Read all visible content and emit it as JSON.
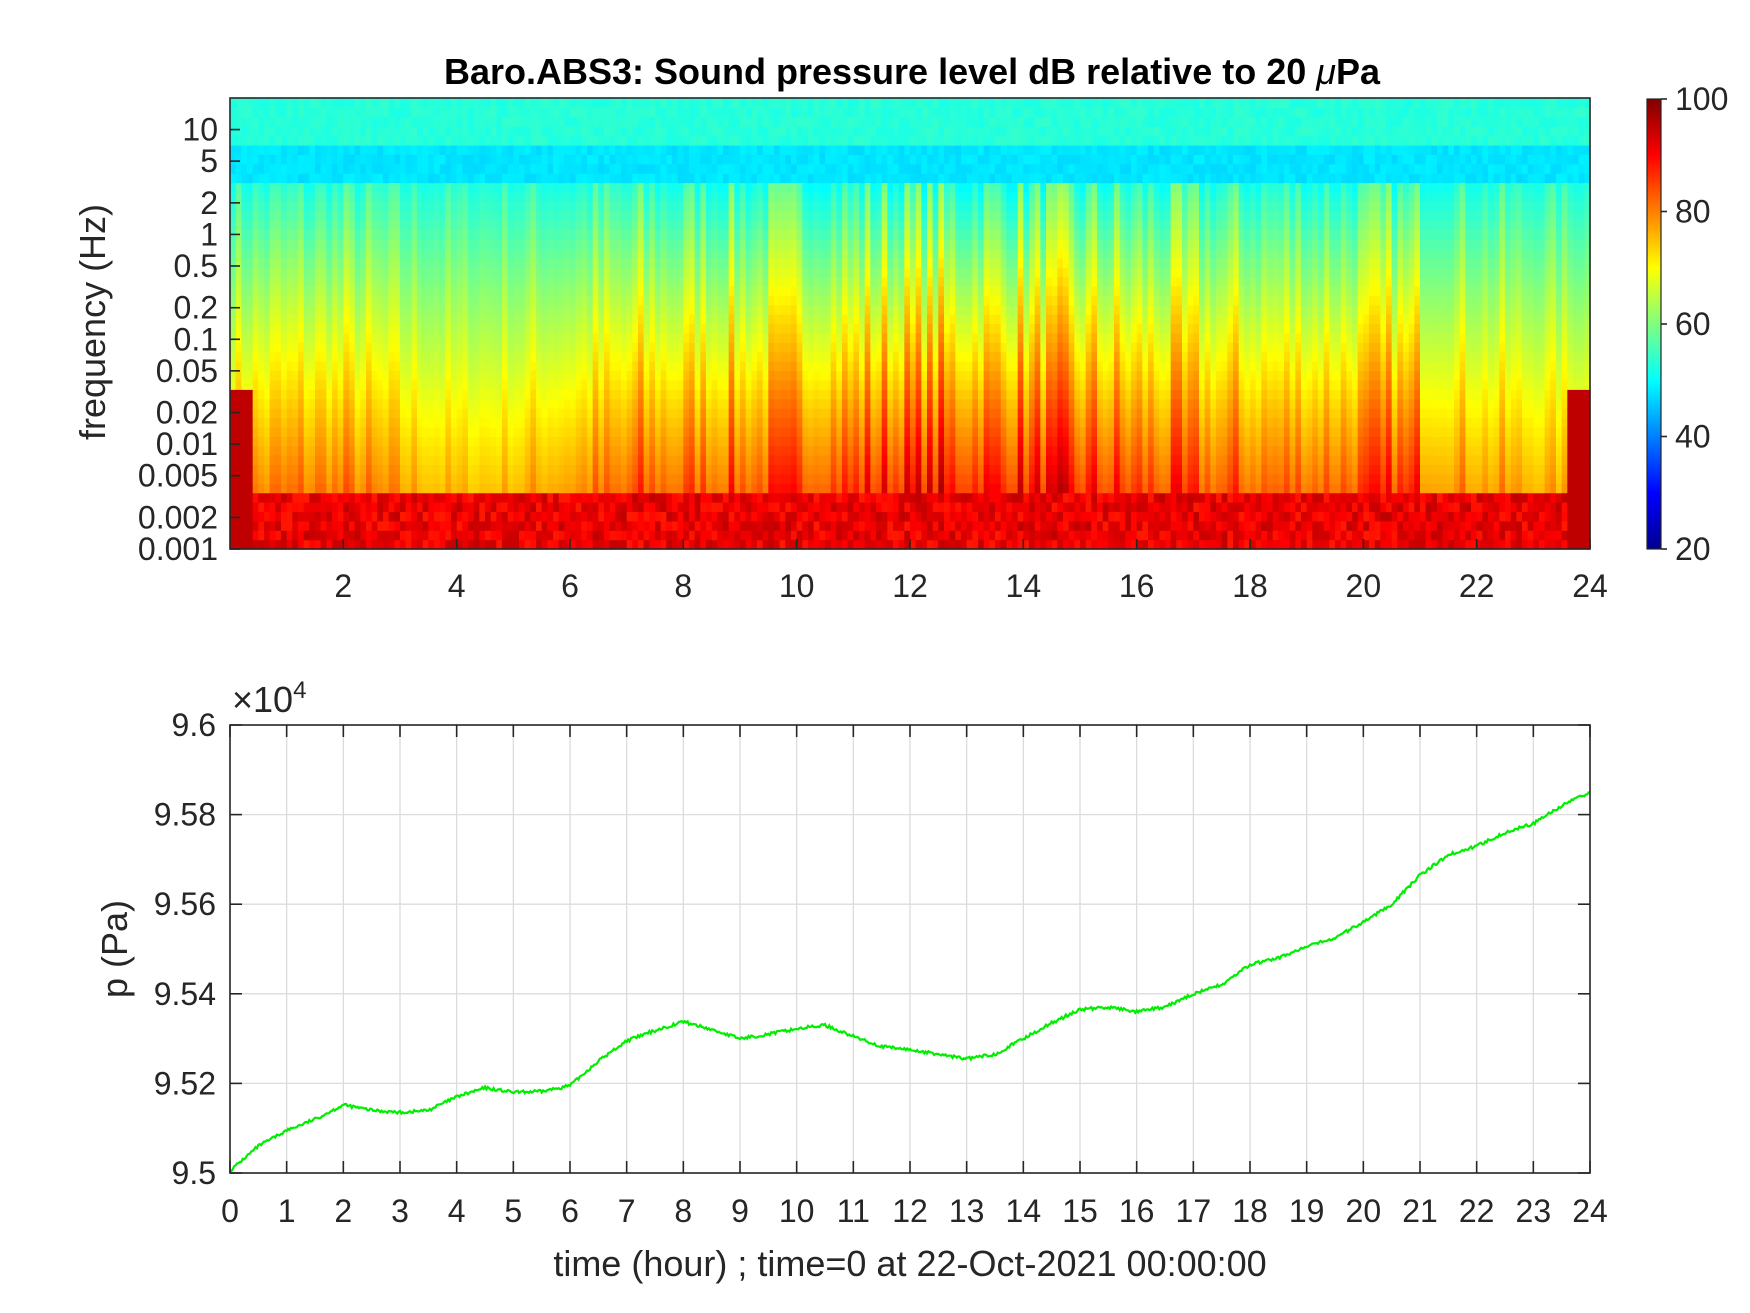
{
  "chart_data": [
    {
      "type": "heatmap",
      "title": "Baro.ABS3: Sound pressure level dB relative to 20 ",
      "title_mu": "μ",
      "title_tail": "Pa",
      "ylabel": "frequency (Hz)",
      "xlim": [
        0,
        24
      ],
      "x_ticks": [
        "2",
        "4",
        "6",
        "8",
        "10",
        "12",
        "14",
        "16",
        "18",
        "20",
        "22",
        "24"
      ],
      "y_scale": "log",
      "ylim": [
        0.001,
        20
      ],
      "y_ticks": [
        "10",
        "5",
        "2",
        "1",
        "0.5",
        "0.2",
        "0.1",
        "0.05",
        "0.02",
        "0.01",
        "0.005",
        "0.002",
        "0.001"
      ],
      "colormap": "jet",
      "colorbar": {
        "range": [
          20,
          100
        ],
        "ticks": [
          "100",
          "80",
          "60",
          "40",
          "20"
        ]
      },
      "description_values": {
        "high_freq_level_dB": 50,
        "low_freq_level_dB": 95,
        "peak_activity_hours": [
          8,
          20
        ]
      }
    },
    {
      "type": "line",
      "ylabel": "p (Pa)",
      "xlabel": "time (hour) ; time=0 at 22-Oct-2021 00:00:00",
      "xlim": [
        0,
        24
      ],
      "ylim": [
        95000,
        96000
      ],
      "y_exponent_label": "×10",
      "y_exponent": "4",
      "x_ticks": [
        "0",
        "1",
        "2",
        "3",
        "4",
        "5",
        "6",
        "7",
        "8",
        "9",
        "10",
        "11",
        "12",
        "13",
        "14",
        "15",
        "16",
        "17",
        "18",
        "19",
        "20",
        "21",
        "22",
        "23",
        "24"
      ],
      "y_ticks": [
        "9.6",
        "9.58",
        "9.56",
        "9.54",
        "9.52",
        "9.5"
      ],
      "grid": true,
      "series": [
        {
          "color": "#00ff00",
          "x": [
            0,
            0.5,
            1,
            1.5,
            2,
            2.5,
            3,
            3.5,
            4,
            4.5,
            5,
            5.5,
            6,
            6.5,
            7,
            7.5,
            8,
            8.5,
            9,
            9.5,
            10,
            10.5,
            11,
            11.5,
            12,
            12.5,
            13,
            13.5,
            14,
            14.5,
            15,
            15.5,
            16,
            16.5,
            17,
            17.5,
            18,
            18.5,
            19,
            19.5,
            20,
            20.5,
            21,
            21.5,
            22,
            22.5,
            23,
            23.5,
            24
          ],
          "y": [
            95005,
            95060,
            95095,
            95120,
            95152,
            95140,
            95135,
            95140,
            95170,
            95190,
            95180,
            95182,
            95195,
            95250,
            95295,
            95318,
            95338,
            95320,
            95300,
            95310,
            95322,
            95330,
            95305,
            95282,
            95275,
            95265,
            95255,
            95265,
            95300,
            95335,
            95365,
            95370,
            95360,
            95370,
            95400,
            95420,
            95465,
            95480,
            95505,
            95525,
            95560,
            95600,
            95665,
            95710,
            95730,
            95760,
            95780,
            95820,
            95850
          ]
        }
      ]
    }
  ]
}
